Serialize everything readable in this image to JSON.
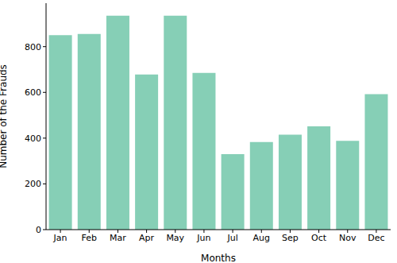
{
  "chart_data": {
    "type": "bar",
    "x_label": "Months",
    "y_label": "Number of the Frauds",
    "categories": [
      "Jan",
      "Feb",
      "Mar",
      "Apr",
      "May",
      "Jun",
      "Jul",
      "Aug",
      "Sep",
      "Oct",
      "Nov",
      "Dec"
    ],
    "values": [
      850,
      855,
      935,
      678,
      935,
      685,
      330,
      383,
      415,
      452,
      388,
      592
    ],
    "color": "#86cfb6",
    "ylim": [
      0,
      990
    ],
    "yticks": [
      0,
      200,
      400,
      600,
      800
    ],
    "grid": false
  }
}
